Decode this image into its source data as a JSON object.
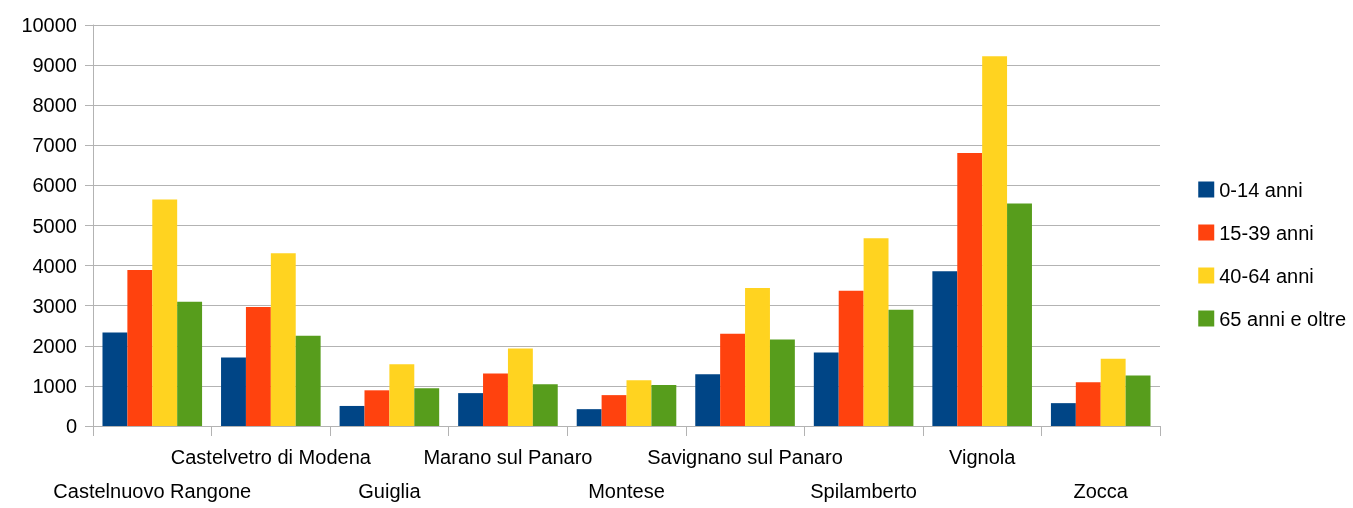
{
  "chart_data": {
    "type": "bar",
    "categories": [
      "Castelnuovo Rangone",
      "Castelvetro di Modena",
      "Guiglia",
      "Marano sul Panaro",
      "Montese",
      "Savignano sul Panaro",
      "Spilamberto",
      "Vignola",
      "Zocca"
    ],
    "series": [
      {
        "name": "0-14 anni",
        "color": "#004586",
        "values": [
          2330,
          1710,
          500,
          820,
          420,
          1290,
          1830,
          3860,
          570
        ]
      },
      {
        "name": "15-39 anni",
        "color": "#ff420e",
        "values": [
          3890,
          2970,
          890,
          1310,
          770,
          2300,
          3370,
          6810,
          1090
        ]
      },
      {
        "name": "40-64 anni",
        "color": "#ffd320",
        "values": [
          5650,
          4310,
          1540,
          1930,
          1140,
          3440,
          4680,
          9220,
          1680
        ]
      },
      {
        "name": "65 anni e oltre",
        "color": "#579d1c",
        "values": [
          3100,
          2250,
          940,
          1040,
          1020,
          2160,
          2900,
          5550,
          1260
        ]
      }
    ],
    "ylim": [
      0,
      10000
    ],
    "yticks": [
      0,
      1000,
      2000,
      3000,
      4000,
      5000,
      6000,
      7000,
      8000,
      9000,
      10000
    ],
    "grid": "y",
    "legend": "right"
  }
}
